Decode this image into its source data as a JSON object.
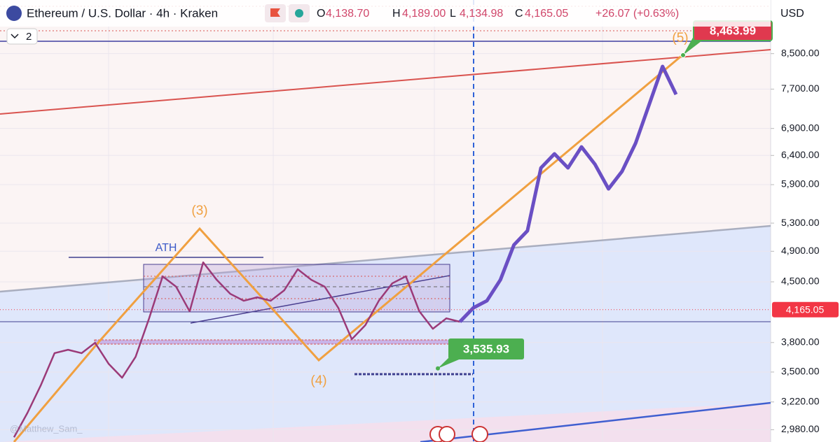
{
  "header": {
    "title": "Ethereum / U.S. Dollar · 4h · Kraken",
    "ohlc": [
      {
        "key": "O",
        "value": "4,138.70"
      },
      {
        "key": "H",
        "value": "4,189.00"
      },
      {
        "key": "L",
        "value": "4,134.98"
      },
      {
        "key": "C",
        "value": "4,165.05"
      }
    ],
    "change": "+26.07 (+0.63%)",
    "currency": "USD",
    "indicators": "2",
    "watermark": "@Matthew_Sam_"
  },
  "chart_data": {
    "type": "line",
    "log_scale": true,
    "categories": [
      null,
      null,
      null,
      null,
      null,
      null,
      null,
      null,
      null,
      null,
      null,
      null,
      null,
      null,
      null,
      null,
      null,
      null,
      null,
      null,
      null,
      null,
      null,
      null,
      null,
      null,
      null,
      null,
      null,
      null,
      null,
      null,
      null,
      null,
      null,
      null,
      null,
      null,
      null,
      null,
      null,
      null,
      null,
      null,
      null,
      null,
      null,
      null,
      null,
      null
    ],
    "series": [
      {
        "color": "#9b3a78",
        "values": [
          2918,
          3125,
          3378,
          3689,
          3724,
          3689,
          3797,
          3582,
          3445,
          3652,
          4065,
          4570,
          4439,
          4145,
          4751,
          4526,
          4353,
          4269,
          4310,
          4269,
          4395,
          4661,
          4526,
          4439,
          4186,
          3835,
          3988,
          4269,
          4482,
          4570,
          4145,
          3948,
          4065,
          4026,
          null,
          null,
          null,
          null,
          null,
          null,
          null,
          null,
          null,
          null,
          null,
          null,
          null,
          null,
          null,
          null
        ]
      },
      {
        "color": "#6a4fc4",
        "values": [
          null,
          null,
          null,
          null,
          null,
          null,
          null,
          null,
          null,
          null,
          null,
          null,
          null,
          null,
          null,
          null,
          null,
          null,
          null,
          null,
          null,
          null,
          null,
          null,
          null,
          null,
          null,
          null,
          null,
          null,
          null,
          null,
          null,
          4026,
          4186,
          4269,
          4526,
          4988,
          5188,
          6182,
          6428,
          6182,
          6554,
          6243,
          5831,
          6122,
          6619,
          7368,
          8202,
          7586
        ]
      }
    ],
    "ylim": [
      2880,
      9870
    ],
    "yticks": [
      {
        "value": 2980,
        "label": "2,980.00"
      },
      {
        "value": 3220,
        "label": "3,220.00"
      },
      {
        "value": 3500,
        "label": "3,500.00"
      },
      {
        "value": 3800,
        "label": "3,800.00"
      },
      {
        "value": 4500,
        "label": "4,500.00"
      },
      {
        "value": 4900,
        "label": "4,900.00"
      },
      {
        "value": 5300,
        "label": "5,300.00"
      },
      {
        "value": 5900,
        "label": "5,900.00"
      },
      {
        "value": 6400,
        "label": "6,400.00"
      },
      {
        "value": 6900,
        "label": "6,900.00"
      },
      {
        "value": 7700,
        "label": "7,700.00"
      },
      {
        "value": 8500,
        "label": "8,500.00"
      }
    ],
    "grid": true,
    "current_price": {
      "value": 4165.05,
      "label": "4,165.05",
      "color": "#f23645"
    },
    "target": {
      "value": 8463.99,
      "label": "8,463.99",
      "color": "#e0394f"
    },
    "low": {
      "value": 3535.93,
      "label": "3,535.93",
      "color": "#4caf50"
    },
    "annotations": [
      "(3)",
      "(4)",
      "(5)",
      "ATH"
    ]
  }
}
